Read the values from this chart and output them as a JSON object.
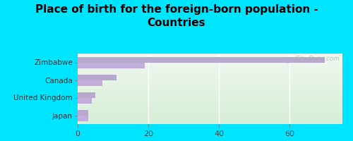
{
  "title": "Place of birth for the foreign-born population -\nCountries",
  "categories": [
    "Japan",
    "United Kingdom",
    "Canada",
    "Zimbabwe"
  ],
  "values1": [
    3,
    5,
    11,
    70
  ],
  "values2": [
    3,
    4,
    7,
    19
  ],
  "bar_color1": "#b8a8cc",
  "bar_color2": "#c0aed8",
  "background_outer": "#00e5ff",
  "background_inner": "#e8f5e8",
  "xlim": [
    0,
    75
  ],
  "xticks": [
    0,
    20,
    40,
    60
  ],
  "bar_height": 0.32,
  "label_fontsize": 7.5,
  "title_fontsize": 11,
  "tick_fontsize": 8,
  "watermark": "City-Data.com"
}
